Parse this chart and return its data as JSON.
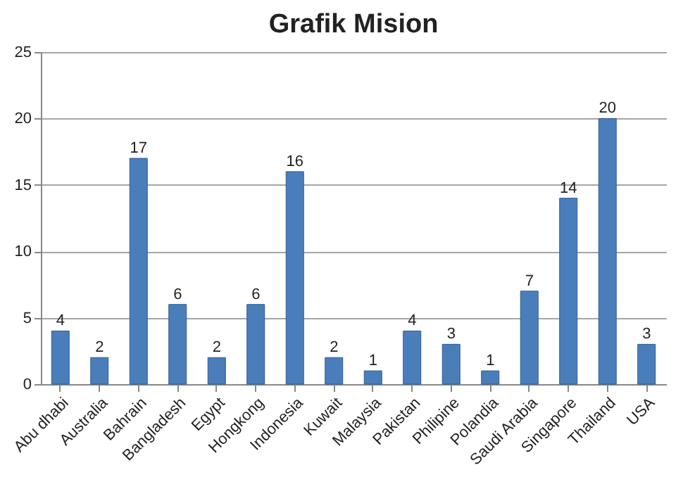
{
  "chart_data": {
    "type": "bar",
    "title": "Grafik Mision",
    "categories": [
      "Abu dhabi",
      "Australia",
      "Bahrain",
      "Bangladesh",
      "Egypt",
      "Hongkong",
      "Indonesia",
      "Kuwait",
      "Malaysia",
      "Pakistan",
      "Philipine",
      "Polandia",
      "Saudi Arabia",
      "Singapore",
      "Thailand",
      "USA"
    ],
    "values": [
      4,
      2,
      17,
      6,
      2,
      6,
      16,
      2,
      1,
      4,
      3,
      1,
      7,
      14,
      20,
      3
    ],
    "color": "#4a7ebb",
    "ylim": [
      0,
      25
    ],
    "yticks": [
      0,
      5,
      10,
      15,
      20,
      25
    ],
    "grid": "y",
    "data_labels": true
  }
}
